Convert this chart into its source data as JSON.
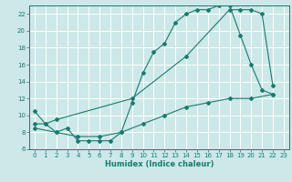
{
  "xlabel": "Humidex (Indice chaleur)",
  "bg_color": "#cce8e8",
  "line_color": "#1a7a6e",
  "grid_color": "#ffffff",
  "xlim": [
    -0.5,
    23.5
  ],
  "ylim": [
    6,
    23
  ],
  "xticks": [
    0,
    1,
    2,
    3,
    4,
    5,
    6,
    7,
    8,
    9,
    10,
    11,
    12,
    13,
    14,
    15,
    16,
    17,
    18,
    19,
    20,
    21,
    22,
    23
  ],
  "yticks": [
    6,
    8,
    10,
    12,
    14,
    16,
    18,
    20,
    22
  ],
  "line1_x": [
    0,
    1,
    2,
    3,
    4,
    5,
    6,
    7,
    8,
    9,
    10,
    11,
    12,
    13,
    14,
    15,
    16,
    17,
    18,
    19,
    20,
    21,
    22
  ],
  "line1_y": [
    10.5,
    9.0,
    8.0,
    8.5,
    7.0,
    7.0,
    7.0,
    7.0,
    8.0,
    11.5,
    15.0,
    17.5,
    18.5,
    21.0,
    22.0,
    22.5,
    22.5,
    23.0,
    23.0,
    19.5,
    16.0,
    13.0,
    12.5
  ],
  "line2_x": [
    0,
    1,
    2,
    9,
    14,
    18,
    19,
    20,
    21,
    22
  ],
  "line2_y": [
    9.0,
    9.0,
    9.5,
    12.0,
    17.0,
    22.5,
    22.5,
    22.5,
    22.0,
    13.5
  ],
  "line3_x": [
    0,
    2,
    4,
    6,
    8,
    10,
    12,
    14,
    16,
    18,
    20,
    22
  ],
  "line3_y": [
    8.5,
    8.0,
    7.5,
    7.5,
    8.0,
    9.0,
    10.0,
    11.0,
    11.5,
    12.0,
    12.0,
    12.5
  ]
}
